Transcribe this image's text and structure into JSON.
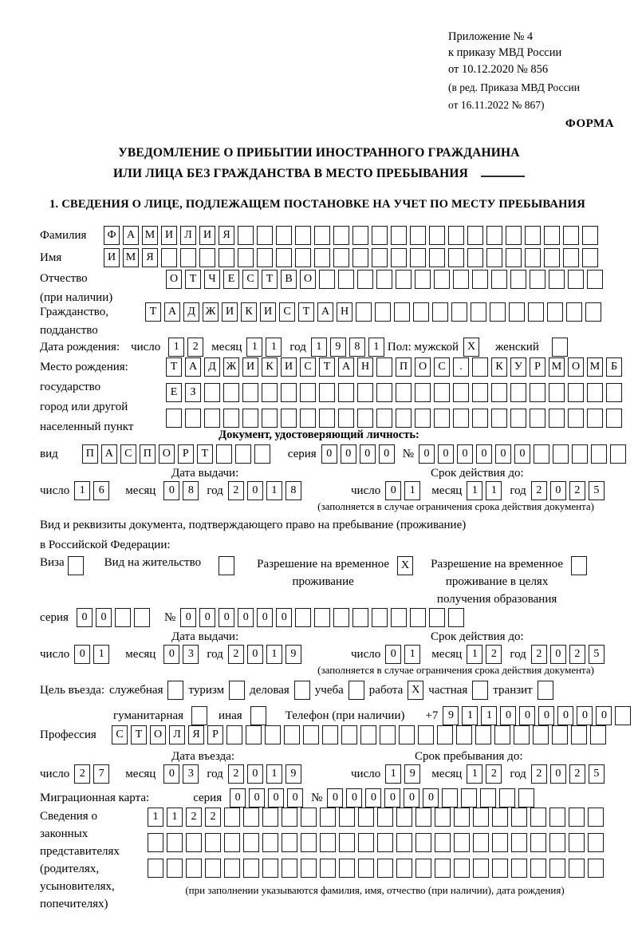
{
  "colors": {
    "background": "#ffffff",
    "text": "#000000",
    "box_border": "#1a1a1a"
  },
  "header": {
    "line1": "Приложение № 4",
    "line2": "к приказу МВД России",
    "line3": "от 10.12.2020 № 856",
    "line4": "(в ред. Приказа МВД России",
    "line5": "от 16.11.2022 № 867)",
    "form_label": "ФОРМА"
  },
  "title": {
    "line1": "УВЕДОМЛЕНИЕ О ПРИБЫТИИ ИНОСТРАННОГО ГРАЖДАНИНА",
    "line2": "ИЛИ ЛИЦА БЕЗ ГРАЖДАНСТВА В МЕСТО ПРЕБЫВАНИЯ"
  },
  "section1": {
    "heading": "1. СВЕДЕНИЯ О ЛИЦЕ, ПОДЛЕЖАЩЕМ ПОСТАНОВКЕ НА УЧЕТ ПО МЕСТУ ПРЕБЫВАНИЯ"
  },
  "common": {
    "day": "число",
    "month": "месяц",
    "year": "год",
    "series": "серия",
    "number": "№",
    "validity_note": "(заполняется в случае ограничения срока действия документа)"
  },
  "surname": {
    "label": "Фамилия",
    "boxes": {
      "text": "ФАМИЛИЯ",
      "total": 26
    }
  },
  "name": {
    "label": "Имя",
    "boxes": {
      "text": "ИМЯ",
      "total": 26
    }
  },
  "patronymic": {
    "label1": "Отчество",
    "label2": "(при наличии)",
    "boxes": {
      "text": "ОТЧЕСТВО",
      "total": 23
    }
  },
  "citizenship": {
    "label1": "Гражданство,",
    "label2": "подданство",
    "boxes": {
      "text": "ТАДЖИКИСТАН",
      "total": 24
    }
  },
  "birth_date": {
    "label": "Дата рождения:",
    "day": {
      "text": "12",
      "total": 2
    },
    "month": {
      "text": "11",
      "total": 2
    },
    "year": {
      "text": "1981",
      "total": 4
    }
  },
  "sex": {
    "label": "Пол: мужской",
    "male_mark": "X",
    "female_label": "женский",
    "female_mark": ""
  },
  "birth_place": {
    "label1": "Место рождения:",
    "label2": "государство",
    "label3": "город или другой",
    "label4": "населенный пункт",
    "row1": {
      "text": "ТАДЖИКИСТАН ПОС. КУРМОМБ",
      "total": 24
    },
    "row2": {
      "text": "ЕЗ",
      "total": 24
    },
    "row3": {
      "text": "",
      "total": 24
    }
  },
  "identity_doc": {
    "heading": "Документ, удостоверяющий личность:",
    "kind_label": "вид",
    "kind": {
      "text": "ПАСПОРТ",
      "total": 10
    },
    "series": {
      "text": "0000",
      "total": 4
    },
    "number": {
      "text": "000000",
      "total": 11
    },
    "issue_heading": "Дата выдачи:",
    "issue": {
      "day": {
        "text": "16",
        "total": 2
      },
      "month": {
        "text": "08",
        "total": 2
      },
      "year": {
        "text": "2018",
        "total": 4
      }
    },
    "valid_heading": "Срок действия до:",
    "valid": {
      "day": {
        "text": "01",
        "total": 2
      },
      "month": {
        "text": "11",
        "total": 2
      },
      "year": {
        "text": "2025",
        "total": 4
      }
    }
  },
  "residence_doc": {
    "intro1": "Вид и реквизиты документа, подтверждающего право на пребывание (проживание)",
    "intro2": "в Российской Федерации:",
    "visa_label": "Виза",
    "visa_mark": "",
    "permit_label": "Вид на жительство",
    "permit_mark": "",
    "temp_line1": "Разрешение на временное",
    "temp_line2": "проживание",
    "temp_mark": "X",
    "edu_line1": "Разрешение на временное",
    "edu_line2": "проживание в целях",
    "edu_line3": "получения образования",
    "edu_mark": "",
    "series": {
      "text": "00",
      "total": 4
    },
    "number": {
      "text": "000000",
      "total": 15
    },
    "issue_heading": "Дата выдачи:",
    "issue": {
      "day": {
        "text": "01",
        "total": 2
      },
      "month": {
        "text": "03",
        "total": 2
      },
      "year": {
        "text": "2019",
        "total": 4
      }
    },
    "valid_heading": "Срок действия до:",
    "valid": {
      "day": {
        "text": "01",
        "total": 2
      },
      "month": {
        "text": "12",
        "total": 2
      },
      "year": {
        "text": "2025",
        "total": 4
      }
    }
  },
  "visit": {
    "purpose_label": "Цель въезда:",
    "opt_official": "служебная",
    "mark_official": "",
    "opt_tourism": "туризм",
    "mark_tourism": "",
    "opt_business": "деловая",
    "mark_business": "",
    "opt_study": "учеба",
    "mark_study": "",
    "opt_work": "работа",
    "mark_work": "X",
    "opt_private": "частная",
    "mark_private": "",
    "opt_transit": "транзит",
    "mark_transit": "",
    "opt_humanitarian": "гуманитарная",
    "mark_humanitarian": "",
    "opt_other": "иная",
    "mark_other": "",
    "phone_label": "Телефон (при наличии)",
    "phone_prefix": "+7",
    "phone": {
      "text": "911000000",
      "total": 10
    }
  },
  "profession": {
    "label": "Профессия",
    "boxes": {
      "text": "СТОЛЯР",
      "total": 26
    }
  },
  "entry": {
    "date_heading": "Дата въезда:",
    "date": {
      "day": {
        "text": "27",
        "total": 2
      },
      "month": {
        "text": "03",
        "total": 2
      },
      "year": {
        "text": "2019",
        "total": 4
      }
    },
    "stay_heading": "Срок пребывания до:",
    "stay": {
      "day": {
        "text": "19",
        "total": 2
      },
      "month": {
        "text": "12",
        "total": 2
      },
      "year": {
        "text": "2025",
        "total": 4
      }
    }
  },
  "migration_card": {
    "label": "Миграционная карта:",
    "series": {
      "text": "0000",
      "total": 4
    },
    "number": {
      "text": "000000",
      "total": 11
    }
  },
  "representatives": {
    "label1": "Сведения о",
    "label2": "законных",
    "label3": "представителях",
    "label4": "(родителях,",
    "label5": "усыновителях,",
    "label6": "попечителях)",
    "row1": {
      "text": "1122",
      "total": 24
    },
    "row2": {
      "text": "",
      "total": 24
    },
    "row3": {
      "text": "",
      "total": 24
    },
    "note": "(при заполнении указываются фамилия, имя, отчество (при наличии), дата рождения)"
  }
}
